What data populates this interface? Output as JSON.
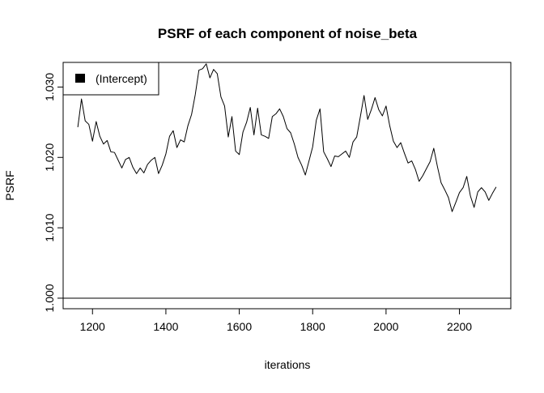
{
  "chart_data": {
    "type": "line",
    "title": "PSRF of each component of noise_beta",
    "xlabel": "iterations",
    "ylabel": "PSRF",
    "xlim": [
      1120,
      2340
    ],
    "ylim": [
      0.9985,
      1.0335
    ],
    "x_ticks": [
      1200,
      1400,
      1600,
      1800,
      2000,
      2200
    ],
    "x_tick_labels": [
      "1200",
      "1400",
      "1600",
      "1800",
      "2000",
      "2200"
    ],
    "y_ticks": [
      1.0,
      1.01,
      1.02,
      1.03
    ],
    "y_tick_labels": [
      "1.000",
      "1.010",
      "1.020",
      "1.030"
    ],
    "reference_line": {
      "y": 1.0,
      "color": "#000000"
    },
    "legend": {
      "position": "top-left",
      "marker": "filled-square",
      "entries": [
        "(Intercept)"
      ]
    },
    "grid": false,
    "series": [
      {
        "name": "(Intercept)",
        "color": "#000000",
        "x": [
          1160,
          1170,
          1180,
          1190,
          1200,
          1210,
          1220,
          1230,
          1240,
          1250,
          1260,
          1270,
          1280,
          1290,
          1300,
          1310,
          1320,
          1330,
          1340,
          1350,
          1360,
          1370,
          1380,
          1390,
          1400,
          1410,
          1420,
          1430,
          1440,
          1450,
          1460,
          1470,
          1480,
          1490,
          1500,
          1510,
          1520,
          1530,
          1540,
          1550,
          1560,
          1570,
          1580,
          1590,
          1600,
          1610,
          1620,
          1630,
          1640,
          1650,
          1660,
          1670,
          1680,
          1690,
          1700,
          1710,
          1720,
          1730,
          1740,
          1750,
          1760,
          1770,
          1780,
          1790,
          1800,
          1810,
          1820,
          1830,
          1840,
          1850,
          1860,
          1870,
          1880,
          1890,
          1900,
          1910,
          1920,
          1930,
          1940,
          1950,
          1960,
          1970,
          1980,
          1990,
          2000,
          2010,
          2020,
          2030,
          2040,
          2050,
          2060,
          2070,
          2080,
          2090,
          2100,
          2110,
          2120,
          2130,
          2140,
          2150,
          2160,
          2170,
          2180,
          2190,
          2200,
          2210,
          2220,
          2230,
          2240,
          2250,
          2260,
          2270,
          2280,
          2290,
          2300
        ],
        "y": [
          1.0243,
          1.0283,
          1.0252,
          1.0247,
          1.0223,
          1.0251,
          1.023,
          1.0219,
          1.0224,
          1.0208,
          1.0207,
          1.0196,
          1.0185,
          1.0197,
          1.02,
          1.0186,
          1.0177,
          1.0185,
          1.0178,
          1.019,
          1.0196,
          1.02,
          1.0177,
          1.0189,
          1.0205,
          1.023,
          1.0238,
          1.0214,
          1.0225,
          1.0222,
          1.0245,
          1.0261,
          1.0289,
          1.0324,
          1.0326,
          1.0333,
          1.0313,
          1.0325,
          1.0319,
          1.0286,
          1.0273,
          1.0229,
          1.0258,
          1.0209,
          1.0204,
          1.0236,
          1.025,
          1.0271,
          1.0232,
          1.027,
          1.0232,
          1.023,
          1.0227,
          1.0258,
          1.0262,
          1.0269,
          1.0258,
          1.0241,
          1.0235,
          1.0219,
          1.02,
          1.0189,
          1.0175,
          1.0195,
          1.0215,
          1.0253,
          1.0269,
          1.0208,
          1.0198,
          1.0187,
          1.0202,
          1.0201,
          1.0205,
          1.0209,
          1.02,
          1.0222,
          1.0229,
          1.0258,
          1.0288,
          1.0254,
          1.0268,
          1.0285,
          1.0268,
          1.0259,
          1.0273,
          1.0245,
          1.0223,
          1.0214,
          1.0221,
          1.0206,
          1.0192,
          1.0195,
          1.0183,
          1.0166,
          1.0174,
          1.0184,
          1.0194,
          1.0213,
          1.0187,
          1.0164,
          1.0154,
          1.0143,
          1.0123,
          1.0136,
          1.015,
          1.0157,
          1.0173,
          1.0145,
          1.0129,
          1.0151,
          1.0157,
          1.0151,
          1.0139,
          1.0149,
          1.0158
        ]
      }
    ]
  }
}
